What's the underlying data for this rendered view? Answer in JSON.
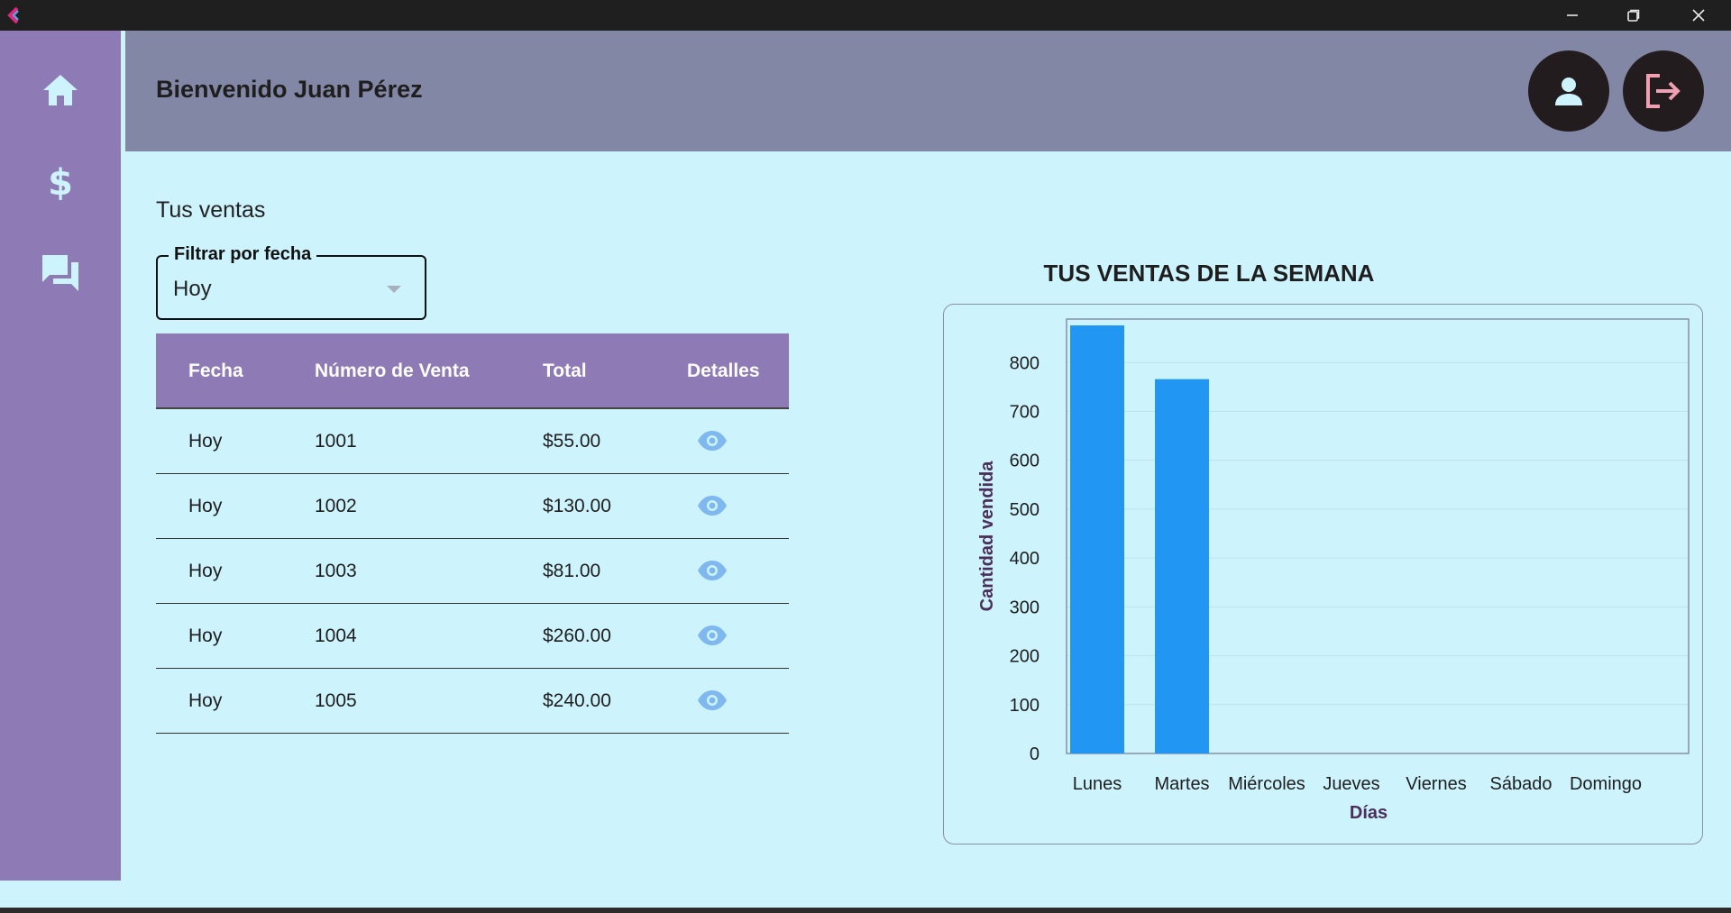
{
  "window": {
    "controls": [
      "minimize-icon",
      "restore-icon",
      "close-icon"
    ]
  },
  "sidebar": {
    "items": [
      {
        "icon": "home-icon"
      },
      {
        "icon": "dollar-icon"
      },
      {
        "icon": "chat-icon"
      }
    ]
  },
  "header": {
    "welcome": "Bienvenido Juan Pérez",
    "actions": [
      "user-icon",
      "logout-icon"
    ]
  },
  "section_title": "Tus ventas",
  "filter": {
    "label": "Filtrar por fecha",
    "value": "Hoy"
  },
  "table": {
    "columns": [
      "Fecha",
      "Número de Venta",
      "Total",
      "Detalles"
    ],
    "rows": [
      {
        "fecha": "Hoy",
        "numero": "1001",
        "total": "$55.00"
      },
      {
        "fecha": "Hoy",
        "numero": "1002",
        "total": "$130.00"
      },
      {
        "fecha": "Hoy",
        "numero": "1003",
        "total": "$81.00"
      },
      {
        "fecha": "Hoy",
        "numero": "1004",
        "total": "$260.00"
      },
      {
        "fecha": "Hoy",
        "numero": "1005",
        "total": "$240.00"
      }
    ]
  },
  "colors": {
    "sidebar": "#8e7bb5",
    "header": "#8287a5",
    "background": "#cdf3fc",
    "bar": "#2196f3",
    "axis_label": "#4b2e5a",
    "logout_icon": "#f0a0b0"
  },
  "chart_data": {
    "type": "bar",
    "title": "TUS VENTAS DE LA SEMANA",
    "xlabel": "Días",
    "ylabel": "Cantidad vendida",
    "categories": [
      "Lunes",
      "Martes",
      "Miércoles",
      "Jueves",
      "Viernes",
      "Sábado",
      "Domingo"
    ],
    "values": [
      876,
      766,
      0,
      0,
      0,
      0,
      0
    ],
    "ylim": [
      0,
      889
    ],
    "yticks": [
      0,
      100,
      200,
      300,
      400,
      500,
      600,
      700,
      800
    ],
    "grid": true,
    "legend": "none"
  }
}
